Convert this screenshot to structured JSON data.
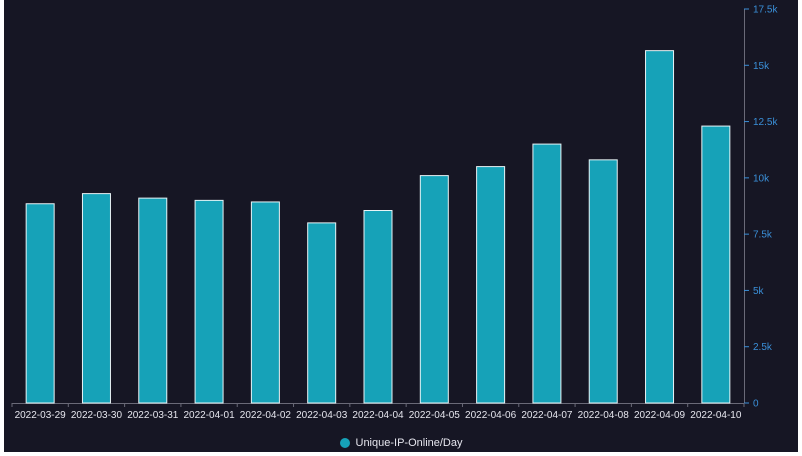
{
  "chart_data": {
    "type": "bar",
    "categories": [
      "2022-03-29",
      "2022-03-30",
      "2022-03-31",
      "2022-04-01",
      "2022-04-02",
      "2022-04-03",
      "2022-04-04",
      "2022-04-05",
      "2022-04-06",
      "2022-04-07",
      "2022-04-08",
      "2022-04-09",
      "2022-04-10"
    ],
    "series": [
      {
        "name": "Unique-IP-Online/Day",
        "values": [
          8850,
          9300,
          9100,
          9000,
          8930,
          8000,
          8550,
          10100,
          10500,
          11500,
          10800,
          15650,
          12300
        ]
      }
    ],
    "ylim": [
      0,
      17500
    ],
    "yticks": [
      0,
      2500,
      5000,
      7500,
      10000,
      12500,
      15000,
      17500
    ],
    "ytick_labels": [
      "0",
      "2.5k",
      "5k",
      "7.5k",
      "10k",
      "12.5k",
      "15k",
      "17.5k"
    ],
    "y_axis_position": "right",
    "grid": false,
    "legend_position": "bottom-center",
    "colors": {
      "bar": "#16a2b8",
      "bar_edge": "#e8f4f6",
      "tick": "#3a8fd8",
      "text": "#e6e6ee",
      "axis": "#6a6a78"
    }
  }
}
